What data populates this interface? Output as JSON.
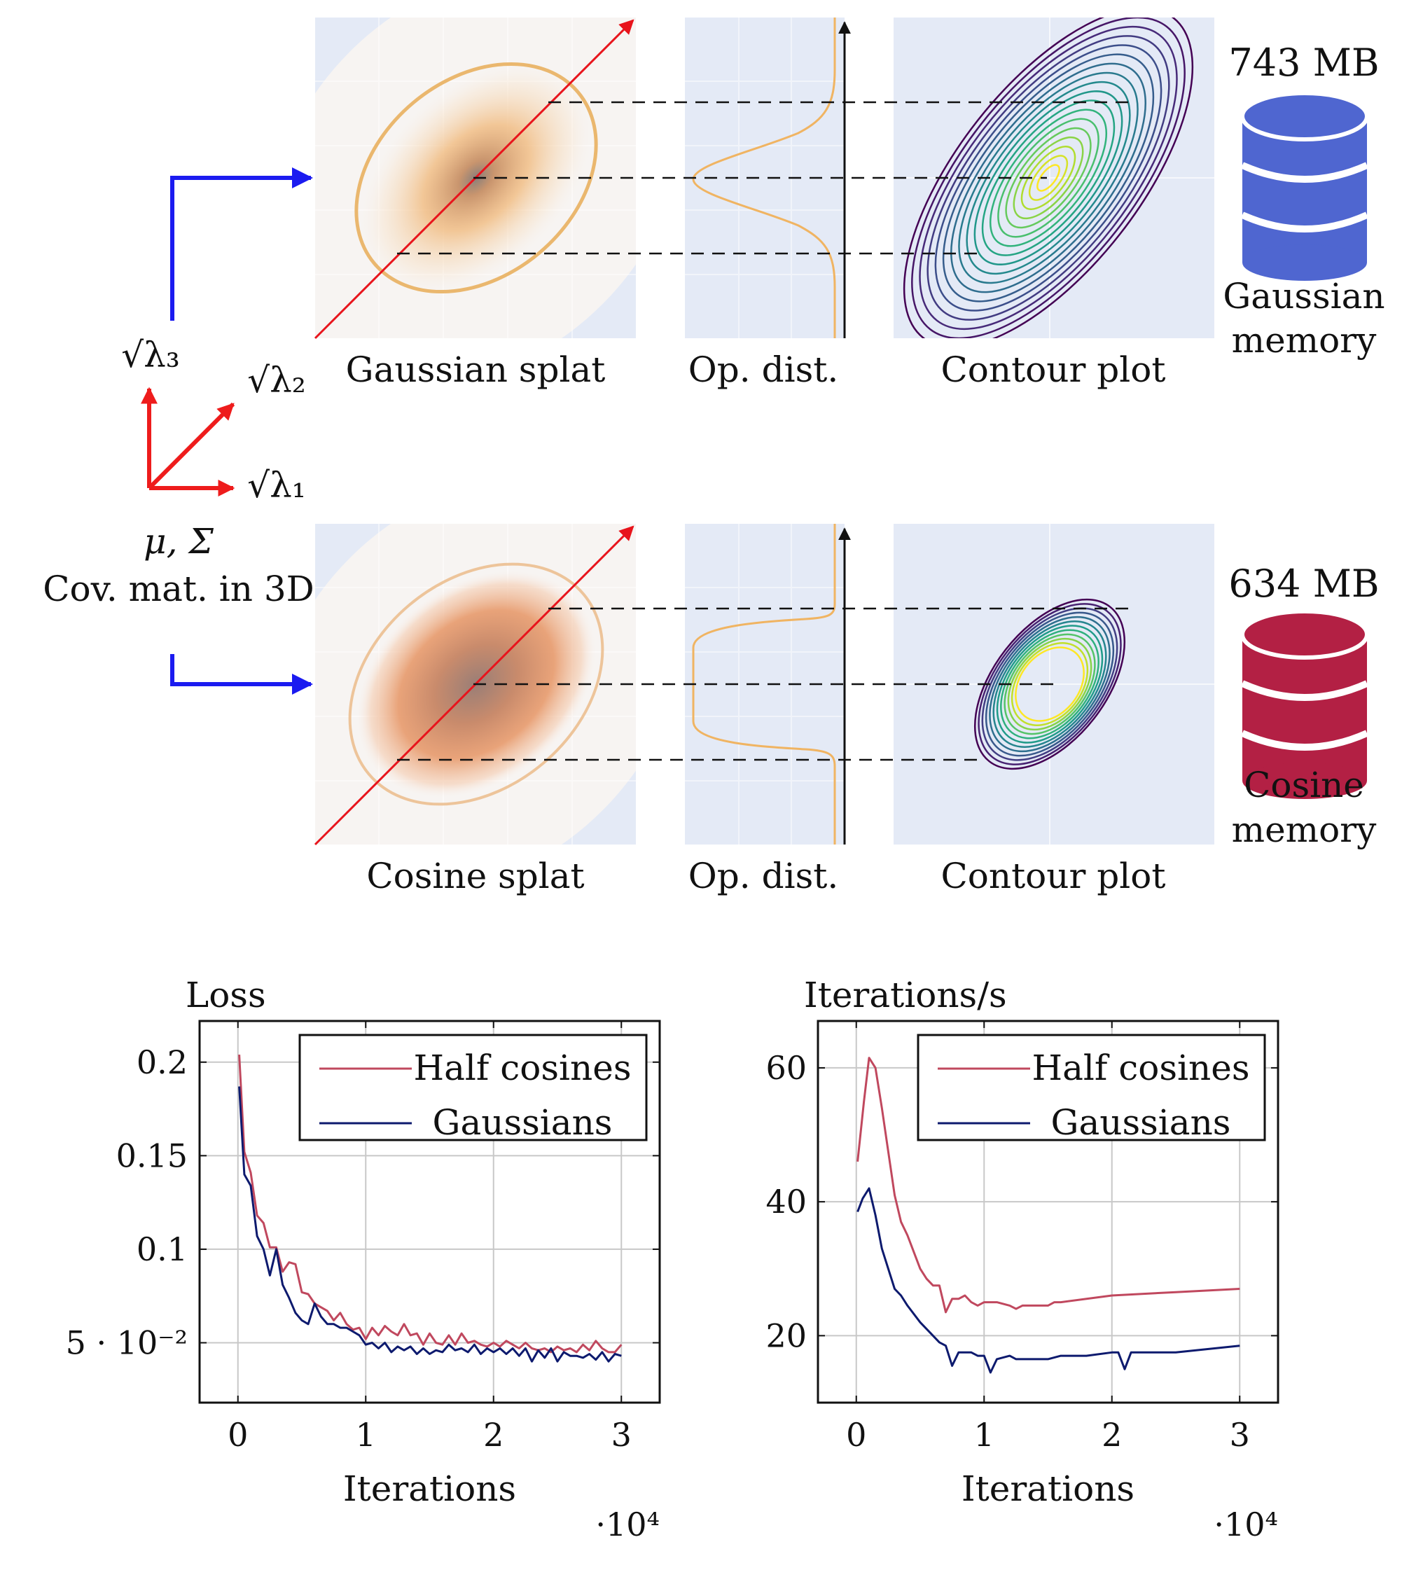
{
  "diagram": {
    "top_row": {
      "panel_labels": [
        "Gaussian splat",
        "Op. dist.",
        "Contour plot"
      ],
      "memory_value": "743 MB",
      "memory_caption": [
        "Gaussian",
        "memory"
      ],
      "db_color": "#4f66d0"
    },
    "bottom_row": {
      "panel_labels": [
        "Cosine splat",
        "Op. dist.",
        "Contour plot"
      ],
      "memory_value": "634 MB",
      "memory_caption": [
        "Cosine",
        "memory"
      ],
      "db_color": "#b32044"
    },
    "axes_glyph": {
      "lambda3": "√λ₃",
      "lambda2": "√λ₂",
      "lambda1": "√λ₁",
      "params": "μ, Σ",
      "caption": "Cov.  mat.  in 3D"
    },
    "colors": {
      "panel_bg": "#e4eaf6",
      "splat_orange": "#f0b46a",
      "diagonal_red": "#e8141c",
      "arrow_blue": "#1b1bf0",
      "axis_red": "#ee1c1c"
    }
  },
  "chart_data": [
    {
      "type": "line",
      "title": "Loss",
      "xlabel": "Iterations",
      "x_multiplier": "·10⁴",
      "xlim": [
        -0.3,
        3.3
      ],
      "ylim": [
        0.018,
        0.222
      ],
      "xticks": [
        0,
        1,
        2,
        3
      ],
      "xtick_labels": [
        "0",
        "1",
        "2",
        "3"
      ],
      "yticks": [
        0.05,
        0.1,
        0.15,
        0.2
      ],
      "ytick_labels": [
        "5 · 10⁻²",
        "0.1",
        "0.15",
        "0.2"
      ],
      "grid": true,
      "legend_position": "top-right",
      "series": [
        {
          "name": "Half cosines",
          "color": "#c0485e",
          "x": [
            0.01,
            0.05,
            0.1,
            0.15,
            0.2,
            0.25,
            0.3,
            0.35,
            0.4,
            0.45,
            0.5,
            0.55,
            0.6,
            0.65,
            0.7,
            0.75,
            0.8,
            0.85,
            0.9,
            0.95,
            1.0,
            1.05,
            1.1,
            1.15,
            1.2,
            1.25,
            1.3,
            1.35,
            1.4,
            1.45,
            1.5,
            1.55,
            1.6,
            1.65,
            1.7,
            1.75,
            1.8,
            1.85,
            1.9,
            1.95,
            2.0,
            2.05,
            2.1,
            2.15,
            2.2,
            2.25,
            2.3,
            2.35,
            2.4,
            2.45,
            2.5,
            2.55,
            2.6,
            2.65,
            2.7,
            2.75,
            2.8,
            2.85,
            2.9,
            2.95,
            3.0
          ],
          "values": [
            0.204,
            0.152,
            0.141,
            0.118,
            0.114,
            0.101,
            0.101,
            0.088,
            0.093,
            0.092,
            0.077,
            0.076,
            0.071,
            0.069,
            0.067,
            0.062,
            0.066,
            0.06,
            0.057,
            0.058,
            0.052,
            0.058,
            0.054,
            0.059,
            0.056,
            0.054,
            0.06,
            0.054,
            0.055,
            0.049,
            0.055,
            0.05,
            0.049,
            0.054,
            0.049,
            0.055,
            0.05,
            0.051,
            0.049,
            0.048,
            0.05,
            0.048,
            0.051,
            0.049,
            0.047,
            0.05,
            0.047,
            0.046,
            0.047,
            0.045,
            0.048,
            0.046,
            0.047,
            0.045,
            0.049,
            0.046,
            0.051,
            0.047,
            0.045,
            0.045,
            0.049
          ]
        },
        {
          "name": "Gaussians",
          "color": "#0d1a6e",
          "x": [
            0.01,
            0.05,
            0.1,
            0.15,
            0.2,
            0.25,
            0.3,
            0.35,
            0.4,
            0.45,
            0.5,
            0.55,
            0.6,
            0.65,
            0.7,
            0.75,
            0.8,
            0.85,
            0.9,
            0.95,
            1.0,
            1.05,
            1.1,
            1.15,
            1.2,
            1.25,
            1.3,
            1.35,
            1.4,
            1.45,
            1.5,
            1.55,
            1.6,
            1.65,
            1.7,
            1.75,
            1.8,
            1.85,
            1.9,
            1.95,
            2.0,
            2.05,
            2.1,
            2.15,
            2.2,
            2.25,
            2.3,
            2.35,
            2.4,
            2.45,
            2.5,
            2.55,
            2.6,
            2.65,
            2.7,
            2.75,
            2.8,
            2.85,
            2.9,
            2.95,
            3.0
          ],
          "values": [
            0.187,
            0.14,
            0.134,
            0.107,
            0.1,
            0.086,
            0.1,
            0.081,
            0.074,
            0.066,
            0.062,
            0.06,
            0.071,
            0.064,
            0.06,
            0.06,
            0.058,
            0.058,
            0.056,
            0.054,
            0.049,
            0.05,
            0.047,
            0.05,
            0.045,
            0.048,
            0.046,
            0.048,
            0.044,
            0.047,
            0.044,
            0.046,
            0.045,
            0.049,
            0.046,
            0.047,
            0.045,
            0.049,
            0.044,
            0.047,
            0.045,
            0.047,
            0.044,
            0.047,
            0.043,
            0.047,
            0.04,
            0.046,
            0.042,
            0.047,
            0.04,
            0.045,
            0.043,
            0.043,
            0.042,
            0.044,
            0.041,
            0.045,
            0.04,
            0.044,
            0.043
          ]
        }
      ]
    },
    {
      "type": "line",
      "title": "Iterations/s",
      "xlabel": "Iterations",
      "x_multiplier": "·10⁴",
      "xlim": [
        -0.3,
        3.3
      ],
      "ylim": [
        10,
        67
      ],
      "xticks": [
        0,
        1,
        2,
        3
      ],
      "xtick_labels": [
        "0",
        "1",
        "2",
        "3"
      ],
      "yticks": [
        20,
        40,
        60
      ],
      "ytick_labels": [
        "20",
        "40",
        "60"
      ],
      "grid": true,
      "legend_position": "top-right",
      "series": [
        {
          "name": "Half cosines",
          "color": "#c0485e",
          "x": [
            0.01,
            0.06,
            0.1,
            0.15,
            0.2,
            0.3,
            0.35,
            0.4,
            0.5,
            0.55,
            0.6,
            0.65,
            0.7,
            0.75,
            0.8,
            0.85,
            0.9,
            0.95,
            1.0,
            1.05,
            1.1,
            1.2,
            1.25,
            1.3,
            1.4,
            1.5,
            1.55,
            1.6,
            2.0,
            2.5,
            3.0
          ],
          "values": [
            46,
            55,
            61.5,
            60,
            54,
            41,
            37,
            35,
            30,
            28.5,
            27.5,
            27.5,
            23.5,
            25.5,
            25.5,
            26,
            25,
            24.5,
            25,
            25,
            25,
            24.5,
            24,
            24.5,
            24.5,
            24.5,
            25,
            25,
            26,
            26.5,
            27
          ]
        },
        {
          "name": "Gaussians",
          "color": "#0d1a6e",
          "x": [
            0.01,
            0.05,
            0.1,
            0.15,
            0.2,
            0.3,
            0.35,
            0.4,
            0.5,
            0.55,
            0.6,
            0.65,
            0.7,
            0.75,
            0.8,
            0.85,
            0.9,
            0.95,
            1.0,
            1.05,
            1.1,
            1.2,
            1.25,
            1.3,
            1.4,
            1.5,
            1.6,
            1.8,
            2.0,
            2.05,
            2.1,
            2.15,
            2.5,
            3.0
          ],
          "values": [
            38.5,
            40.5,
            42,
            38,
            33,
            27,
            26,
            24.5,
            22,
            21,
            20,
            19,
            18.5,
            15.5,
            17.5,
            17.5,
            17.5,
            17,
            17,
            14.5,
            16.5,
            17,
            16.5,
            16.5,
            16.5,
            16.5,
            17,
            17,
            17.5,
            17.5,
            15,
            17.5,
            17.5,
            18.5
          ]
        }
      ]
    }
  ]
}
